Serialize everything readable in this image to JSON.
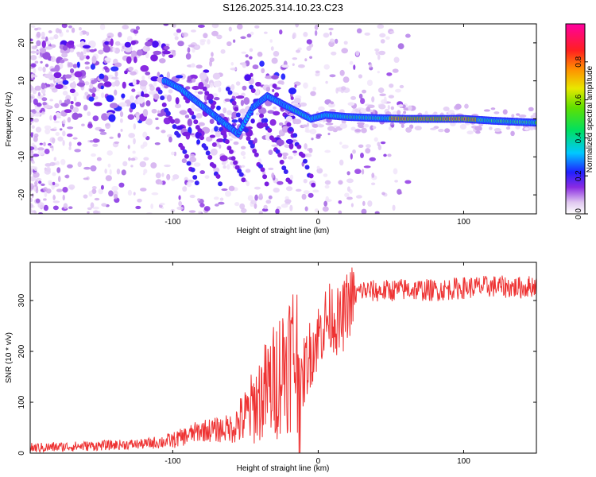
{
  "title": "S126.2025.314.10.23.C23",
  "chart_data": [
    {
      "type": "heatmap",
      "xlabel": "Height of straight line (km)",
      "ylabel": "Frequency (Hz)",
      "xlim": [
        -198,
        150
      ],
      "ylim": [
        -25,
        25
      ],
      "xticks": [
        -100,
        0,
        100
      ],
      "xtick_labels": [
        "-100",
        "0",
        "100"
      ],
      "yticks": [
        -20,
        -10,
        0,
        10,
        20
      ],
      "ytick_labels": [
        "-20",
        "-10",
        "0",
        "10",
        "20"
      ],
      "ridge": [
        {
          "x": -105,
          "y": 10
        },
        {
          "x": -95,
          "y": 8
        },
        {
          "x": -85,
          "y": 5
        },
        {
          "x": -75,
          "y": 2
        },
        {
          "x": -65,
          "y": -1
        },
        {
          "x": -55,
          "y": -4
        },
        {
          "x": -45,
          "y": 3
        },
        {
          "x": -35,
          "y": 6
        },
        {
          "x": -25,
          "y": 4
        },
        {
          "x": -15,
          "y": 2
        },
        {
          "x": -5,
          "y": 0
        },
        {
          "x": 5,
          "y": 1
        },
        {
          "x": 20,
          "y": 0.5
        },
        {
          "x": 40,
          "y": 0.2
        },
        {
          "x": 60,
          "y": 0
        },
        {
          "x": 80,
          "y": 0
        },
        {
          "x": 100,
          "y": 0
        },
        {
          "x": 120,
          "y": -0.5
        },
        {
          "x": 150,
          "y": -1
        }
      ],
      "colorbar": {
        "label": "Normalized spectral amplitude",
        "range": [
          0,
          1
        ],
        "ticks": [
          0.0,
          0.2,
          0.4,
          0.6,
          0.8
        ],
        "tick_labels": [
          "0.0",
          "0.2",
          "0.4",
          "0.6",
          "0.8"
        ]
      }
    },
    {
      "type": "line",
      "xlabel": "Height of straight line (km)",
      "ylabel": "SNR (10 * v/v)",
      "xlim": [
        -198,
        150
      ],
      "ylim": [
        0,
        375
      ],
      "xticks": [
        -100,
        0,
        100
      ],
      "xtick_labels": [
        "-100",
        "0",
        "100"
      ],
      "yticks": [
        0,
        100,
        200,
        300
      ],
      "ytick_labels": [
        "0",
        "100",
        "200",
        "300"
      ],
      "color": "#ee3333",
      "series": [
        {
          "name": "SNR",
          "x": [
            -198,
            -180,
            -160,
            -140,
            -120,
            -100,
            -90,
            -80,
            -70,
            -60,
            -50,
            -40,
            -30,
            -25,
            -20,
            -15,
            -12,
            -10,
            -5,
            0,
            5,
            10,
            15,
            20,
            25,
            30,
            40,
            50,
            60,
            80,
            100,
            120,
            140,
            150
          ],
          "y": [
            10,
            12,
            14,
            16,
            18,
            25,
            35,
            45,
            45,
            50,
            70,
            110,
            140,
            170,
            190,
            200,
            100,
            160,
            200,
            230,
            260,
            270,
            250,
            290,
            310,
            320,
            318,
            320,
            322,
            320,
            325,
            328,
            325,
            330
          ]
        }
      ]
    }
  ]
}
